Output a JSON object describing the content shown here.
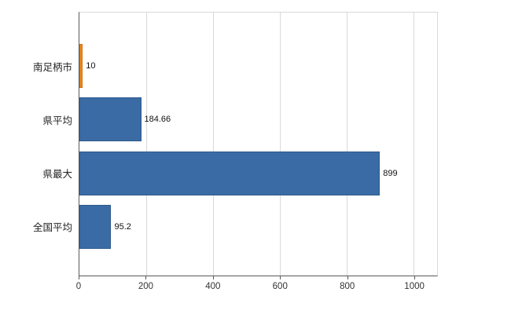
{
  "chart_data": {
    "type": "bar",
    "orientation": "horizontal",
    "title": "",
    "categories": [
      "南足柄市",
      "県平均",
      "県最大",
      "全国平均"
    ],
    "values": [
      10,
      184.66,
      899,
      95.2
    ],
    "value_labels": [
      "10",
      "184.66",
      "899",
      "95.2"
    ],
    "bar_colors": [
      "#f0861b",
      "#3a6ba5",
      "#3a6ba5",
      "#3a6ba5"
    ],
    "bar_border_colors": [
      "#c96f12",
      "#2f5a8c",
      "#2f5a8c",
      "#2f5a8c"
    ],
    "x_ticks": [
      0,
      200,
      400,
      600,
      800,
      1000
    ],
    "x_tick_labels": [
      "0",
      "200",
      "400",
      "600",
      "800",
      "1000"
    ],
    "xlim": [
      0,
      1070
    ],
    "grid": true,
    "legend": false,
    "background": "#ffffff",
    "grid_color": "#d9d9d9",
    "axis_color": "#5a5a5a"
  }
}
